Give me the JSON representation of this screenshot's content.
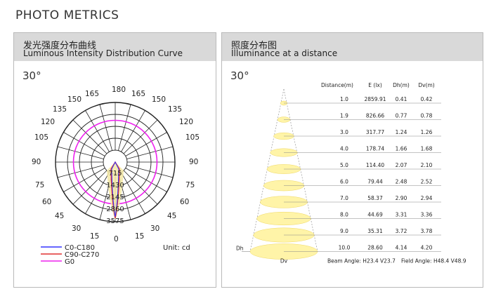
{
  "page_title": "PHOTO METRICS",
  "left_panel": {
    "title_cn": "发光强度分布曲线",
    "title_en": "Luminous Intensity Distribution Curve",
    "beam_angle": "30°",
    "angle_labels": [
      "180",
      "165",
      "165",
      "150",
      "150",
      "135",
      "135",
      "120",
      "120",
      "105",
      "105",
      "90",
      "90",
      "75",
      "75",
      "60",
      "60",
      "45",
      "45",
      "30",
      "30",
      "15",
      "15",
      "0"
    ],
    "radial_labels": [
      "715",
      "1430",
      "2145",
      "2860",
      "3575"
    ],
    "unit": "Unit: cd",
    "legend": [
      {
        "label": "C0-C180",
        "color": "#3333ff"
      },
      {
        "label": "C90-C270",
        "color": "#e03030"
      },
      {
        "label": "G0",
        "color": "#ee22ee"
      }
    ]
  },
  "right_panel": {
    "title_cn": "照度分布图",
    "title_en": "Illuminance at a distance",
    "beam_angle": "30°",
    "table_headers": [
      "Distance(m)",
      "E (lx)",
      "Dh(m)",
      "Dv(m)"
    ],
    "rows": [
      {
        "d": "1.0",
        "e": "2859.91",
        "dh": "0.41",
        "dv": "0.42"
      },
      {
        "d": "1.9",
        "e": "826.66",
        "dh": "0.77",
        "dv": "0.78"
      },
      {
        "d": "3.0",
        "e": "317.77",
        "dh": "1.24",
        "dv": "1.26"
      },
      {
        "d": "4.0",
        "e": "178.74",
        "dh": "1.66",
        "dv": "1.68"
      },
      {
        "d": "5.0",
        "e": "114.40",
        "dh": "2.07",
        "dv": "2.10"
      },
      {
        "d": "6.0",
        "e": "79.44",
        "dh": "2.48",
        "dv": "2.52"
      },
      {
        "d": "7.0",
        "e": "58.37",
        "dh": "2.90",
        "dv": "2.94"
      },
      {
        "d": "8.0",
        "e": "44.69",
        "dh": "3.31",
        "dv": "3.36"
      },
      {
        "d": "9.0",
        "e": "35.31",
        "dh": "3.72",
        "dv": "3.78"
      },
      {
        "d": "10.0",
        "e": "28.60",
        "dh": "4.14",
        "dv": "4.20"
      }
    ],
    "dh_label": "Dh",
    "dv_label": "Dv",
    "beam_angle_text": "Beam Angle: H23.4 V23.7",
    "field_angle_text": "Field Angle: H48.4 V48.9"
  }
}
